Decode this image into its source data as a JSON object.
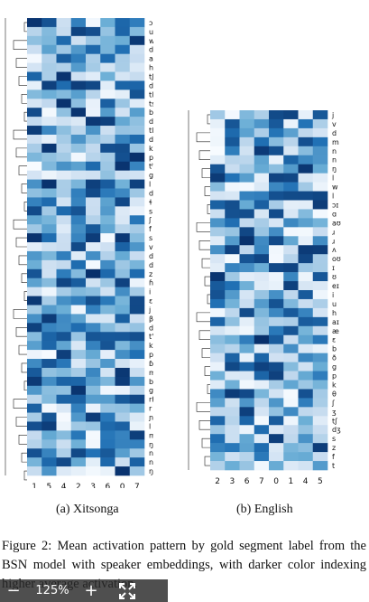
{
  "figure": {
    "caption": "Figure 2: Mean activation pattern by gold segment label from the BSN model with speaker embeddings, with darker color indexing higher average activation.",
    "zoom_level": "125%",
    "zoom_out_label": "−",
    "zoom_in_label": "+",
    "colormap": [
      "#f7fbff",
      "#c6dbef",
      "#6baed6",
      "#2171b5",
      "#08306b"
    ]
  },
  "chart_data": [
    {
      "type": "heatmap",
      "title": "(a) Xitsonga",
      "x_labels": [
        "1",
        "5",
        "4",
        "2",
        "3",
        "6",
        "0",
        "7"
      ],
      "y_labels": [
        "ɔ",
        "u",
        "w",
        "dɦ",
        "a",
        "h",
        "tʃʰ",
        "dʒ",
        "tl'",
        "ts'",
        "bj",
        "dɮ",
        "tlʰ",
        "dʒɦ",
        "kʰ",
        "pʰ",
        "tʰ",
        "gɦ",
        "l",
        "dj",
        "ɬ",
        "s",
        "ʃ",
        "f",
        "s",
        "v",
        "dzɦ",
        "dʑ",
        "z",
        "ɦ",
        "i",
        "ɛ",
        "j",
        "β",
        "d",
        "t'",
        "k",
        "p",
        "ɓ",
        "mɦ",
        "b",
        "g",
        "rɦ",
        "r",
        "ɲ",
        "l",
        "m",
        "ŋ",
        "n",
        "nɦ",
        "ŋ"
      ]
    },
    {
      "type": "heatmap",
      "title": "(b) English",
      "x_labels": [
        "2",
        "3",
        "6",
        "7",
        "0",
        "1",
        "4",
        "5"
      ],
      "y_labels": [
        "j",
        "v",
        "d",
        "m",
        "n",
        "n",
        "ŋ",
        "l",
        "w",
        "l",
        "ɔɪ",
        "ɑ",
        "aʊ",
        "ɹ",
        "ɹ",
        "ʌ",
        "oʊ",
        "ɪ",
        "ʊ",
        "eɪ",
        "i",
        "u",
        "h",
        "aɪ",
        "æ",
        "ɛ",
        "b",
        "ð",
        "g",
        "p",
        "k",
        "θ",
        "ʃ",
        "ʒ",
        "tʃ",
        "dʒ",
        "s",
        "z",
        "f",
        "t"
      ]
    }
  ]
}
